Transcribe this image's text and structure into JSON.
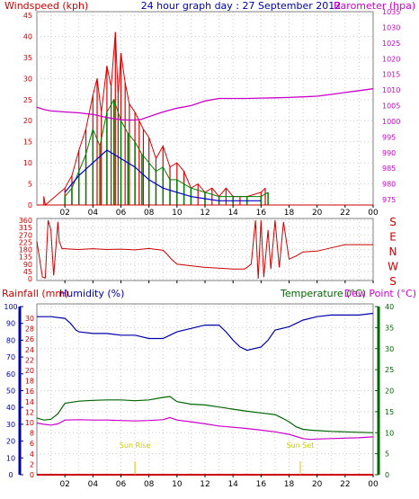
{
  "colors": {
    "wind_speed": "#cc0000",
    "wind_gust": "#dd0000",
    "wind_avg": "#008000",
    "wind_line": "#0000cc",
    "barometer": "#cc00cc",
    "direction": "#cc0000",
    "rainfall": "#cc0000",
    "humidity": "#0000aa",
    "temperature": "#006600",
    "dewpoint": "#cc00cc",
    "axis_blue": "#0000aa",
    "sun": "#cccc00",
    "grid": "#cccccc",
    "frame": "#808080"
  },
  "header": {
    "title": "24 hour graph day : 27 September 2012",
    "left_label": "Windspeed (kph)",
    "right_label": "Barometer (hpa)"
  },
  "time_ticks": [
    "02",
    "04",
    "06",
    "08",
    "10",
    "12",
    "14",
    "16",
    "18",
    "20",
    "22",
    "00"
  ],
  "chart_data": [
    {
      "type": "line",
      "name": "wind-barometer",
      "x_unit": "hours",
      "x_range": [
        0,
        24
      ],
      "left_axis": {
        "label": "Windspeed (kph)",
        "range": [
          0,
          45
        ],
        "ticks": [
          0,
          5,
          10,
          15,
          20,
          25,
          30,
          35,
          40,
          45
        ]
      },
      "right_axis": {
        "label": "Barometer (hpa)",
        "range": [
          975,
          1035
        ],
        "ticks": [
          975,
          980,
          985,
          990,
          995,
          1000,
          1005,
          1010,
          1015,
          1020,
          1025,
          1030,
          1035
        ]
      },
      "barometer": {
        "x": [
          0,
          0.5,
          1,
          2,
          3,
          4,
          5,
          6,
          6.5,
          7,
          7.5,
          8,
          9,
          10,
          11,
          12,
          13,
          14,
          15,
          16,
          17,
          18,
          19,
          20,
          21,
          22,
          23,
          24
        ],
        "y": [
          1004.5,
          1003.8,
          1003.3,
          1003,
          1002.7,
          1002.2,
          1001.2,
          1000.5,
          1000.4,
          1000.4,
          1000.7,
          1001.5,
          1003,
          1004.2,
          1005,
          1006.5,
          1007.3,
          1007.3,
          1007.3,
          1007.4,
          1007.5,
          1007.6,
          1007.8,
          1008,
          1008.6,
          1009.2,
          1009.8,
          1010.4
        ]
      },
      "wind_gust_envelope": {
        "x": [
          0.5,
          0.6,
          2,
          2.5,
          3,
          3.5,
          4,
          4.3,
          4.6,
          5,
          5.3,
          5.6,
          5.8,
          6,
          6.3,
          6.6,
          7,
          7.3,
          7.6,
          8,
          8.5,
          9,
          9.5,
          10,
          10.5,
          11,
          11.5,
          12,
          12.5,
          13,
          13.5,
          14,
          14.5,
          15,
          16,
          16.3
        ],
        "y": [
          2,
          0,
          4,
          7,
          13,
          18,
          26,
          30,
          22,
          33,
          28,
          41,
          26,
          36,
          29,
          24,
          22,
          20,
          18,
          16,
          11,
          14,
          9,
          10,
          8,
          4,
          5,
          3,
          4,
          2,
          4,
          2,
          2,
          2,
          3,
          4
        ]
      },
      "wind_avg_envelope": {
        "x": [
          2,
          2.5,
          3,
          3.5,
          4,
          4.5,
          5,
          5.5,
          6,
          6.5,
          7,
          7.5,
          8,
          8.5,
          9,
          9.5,
          10,
          10.5,
          11,
          12,
          13,
          14,
          15,
          16,
          16.5
        ],
        "y": [
          2,
          4,
          8,
          12,
          18,
          14,
          22,
          25,
          20,
          17,
          15,
          12,
          10,
          8,
          9,
          6,
          6,
          5,
          4,
          3,
          2,
          2,
          2,
          2,
          3
        ]
      },
      "wind_average_line": {
        "x": [
          2,
          3,
          4,
          5,
          6,
          7,
          8,
          9,
          10,
          11,
          12,
          13,
          14,
          15,
          16
        ],
        "y": [
          3,
          7,
          10,
          13,
          11,
          9,
          6,
          4,
          3,
          2,
          1.5,
          1,
          1,
          1,
          1
        ]
      }
    },
    {
      "type": "line",
      "name": "wind-direction",
      "x_unit": "hours",
      "x_range": [
        0,
        24
      ],
      "left_axis": {
        "range": [
          0,
          360
        ],
        "ticks": [
          0,
          45,
          90,
          135,
          180,
          225,
          270,
          315,
          360
        ]
      },
      "compass_labels": [
        "S",
        "E",
        "N",
        "W",
        "S"
      ],
      "direction": {
        "x": [
          0,
          0.2,
          0.4,
          0.6,
          0.8,
          1,
          1.2,
          1.5,
          1.6,
          1.8,
          2,
          2.5,
          3,
          4,
          5,
          6,
          7,
          8,
          9,
          9.3,
          9.6,
          10,
          11,
          12,
          13,
          14,
          14.8,
          15,
          15.3,
          15.6,
          15.8,
          16,
          16.2,
          16.5,
          16.7,
          17,
          17.3,
          17.6,
          18,
          18.5,
          19,
          20,
          21,
          22,
          23,
          24
        ],
        "y": [
          230,
          120,
          10,
          5,
          360,
          300,
          20,
          350,
          230,
          185,
          185,
          182,
          180,
          185,
          180,
          182,
          178,
          186,
          175,
          150,
          120,
          90,
          80,
          70,
          65,
          60,
          60,
          70,
          90,
          360,
          0,
          360,
          10,
          300,
          60,
          360,
          70,
          350,
          120,
          140,
          165,
          170,
          190,
          210,
          210,
          210
        ]
      }
    },
    {
      "type": "line",
      "name": "rain-humidity-temperature",
      "x_unit": "hours",
      "x_range": [
        0,
        24
      ],
      "rain_axis": {
        "label": "Rainfall (mm)",
        "range": [
          0,
          30
        ],
        "ticks": [
          0,
          2,
          4,
          6,
          8,
          10,
          12,
          14,
          16,
          18,
          20,
          22,
          24,
          26,
          28,
          30
        ]
      },
      "humidity_axis": {
        "label": "Humidity (%)",
        "range": [
          0,
          100
        ],
        "ticks": [
          0,
          10,
          20,
          30,
          40,
          50,
          60,
          70,
          80,
          90,
          100
        ]
      },
      "temperature_axis": {
        "label": "Temperature (°C)",
        "range": [
          0,
          40
        ],
        "ticks": [
          0,
          5,
          10,
          15,
          20,
          25,
          30,
          35,
          40
        ]
      },
      "dewpoint_label": "Dew Point (°C)",
      "humidity": {
        "x": [
          0,
          1,
          2,
          2.4,
          2.8,
          3,
          4,
          5,
          6,
          7,
          8,
          9,
          9.5,
          10,
          11,
          12,
          13,
          13.5,
          14,
          14.5,
          15,
          16,
          16.5,
          17,
          18,
          19,
          20,
          21,
          22,
          23,
          24
        ],
        "y": [
          94,
          94,
          93,
          90,
          86,
          85,
          84,
          84,
          83,
          83,
          81,
          81,
          83,
          85,
          87,
          89,
          89,
          85,
          80,
          76,
          74,
          76,
          80,
          86,
          88,
          92,
          94,
          95,
          95,
          95,
          96
        ]
      },
      "temperature": {
        "x": [
          0,
          0.5,
          1,
          1.5,
          2,
          3,
          4,
          5,
          6,
          7,
          8,
          9,
          9.5,
          10,
          11,
          12,
          13,
          14,
          15,
          16,
          17,
          17.5,
          18,
          18.5,
          19,
          19.5,
          20,
          21,
          22,
          23,
          24
        ],
        "y": [
          13.5,
          13,
          13.2,
          14.5,
          17,
          17.5,
          17.7,
          17.8,
          17.8,
          17.6,
          17.8,
          18.4,
          18.6,
          17.4,
          16.8,
          16.6,
          16.1,
          15.6,
          15.1,
          14.7,
          14.3,
          13.5,
          12.6,
          11.4,
          10.8,
          10.6,
          10.5,
          10.3,
          10.2,
          10.1,
          10.0
        ]
      },
      "dewpoint": {
        "x": [
          0,
          0.5,
          1,
          1.5,
          2,
          3,
          4,
          5,
          6,
          7,
          8,
          9,
          9.5,
          10,
          11,
          12,
          13,
          14,
          15,
          16,
          17,
          18,
          18.5,
          19,
          19.5,
          20,
          21,
          22,
          23,
          24
        ],
        "y": [
          12.3,
          12.0,
          11.8,
          12.1,
          13.0,
          13.1,
          13.0,
          13.0,
          12.9,
          12.8,
          12.9,
          13.1,
          13.6,
          13.0,
          12.6,
          12.1,
          11.6,
          11.3,
          11.0,
          10.6,
          10.2,
          9.6,
          9.1,
          8.6,
          8.4,
          8.5,
          8.6,
          8.7,
          8.8,
          9.0
        ]
      },
      "rainfall": {
        "x": [
          0,
          24
        ],
        "y": [
          0,
          0
        ]
      },
      "annotations": [
        {
          "text": "Sun Rise",
          "x": 7.0
        },
        {
          "text": "Sun Set",
          "x": 18.8
        }
      ]
    }
  ]
}
